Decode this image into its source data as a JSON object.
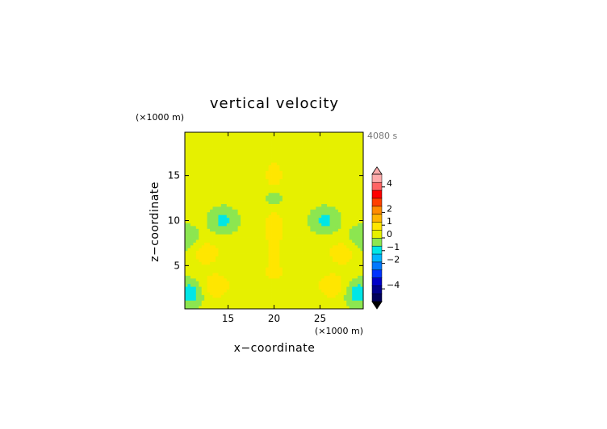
{
  "chart_data": {
    "type": "heatmap",
    "title": "vertical velocity",
    "xlabel": "x−coordinate",
    "ylabel": "z−coordinate",
    "x_unit": "(×1000 m)",
    "y_unit": "(×1000 m)",
    "time_label": "4080 s",
    "xlim": [
      10.3,
      29.7
    ],
    "ylim": [
      0.2,
      19.8
    ],
    "x_ticks": [
      15,
      20,
      25
    ],
    "x_tick_labels": [
      "15",
      "20",
      "25"
    ],
    "y_ticks": [
      5,
      10,
      15
    ],
    "y_tick_labels": [
      "5",
      "10",
      "15"
    ],
    "colorbar": {
      "tick_values": [
        4,
        2,
        1,
        0,
        -1,
        -2,
        -4
      ],
      "tick_labels": [
        "4",
        "2",
        "1",
        "0",
        "−1",
        "−2",
        "−4"
      ],
      "range": [
        -5,
        5
      ],
      "extend": "both",
      "colors": [
        "#00005a",
        "#00008c",
        "#0000c8",
        "#0032ff",
        "#0078ff",
        "#00b4ff",
        "#00e6e6",
        "#8ce650",
        "#e6f000",
        "#ffe600",
        "#ffb400",
        "#ff8c00",
        "#ff4000",
        "#ff0000",
        "#ff6464",
        "#ffaaaa"
      ]
    },
    "field": {
      "background_value": 0.25,
      "features": [
        {
          "x": 20.0,
          "z": 9.5,
          "value": 1.05
        },
        {
          "x": 20.0,
          "z": 15.0,
          "value": 1.0
        },
        {
          "x": 20.0,
          "z": 12.3,
          "value": -0.7
        },
        {
          "x": 13.4,
          "z": 2.6,
          "value": 1.05
        },
        {
          "x": 26.6,
          "z": 2.6,
          "value": 1.05
        },
        {
          "x": 12.5,
          "z": 6.5,
          "value": 1.0
        },
        {
          "x": 27.5,
          "z": 6.5,
          "value": 1.0
        },
        {
          "x": 10.9,
          "z": 2.0,
          "value": -1.1
        },
        {
          "x": 29.1,
          "z": 2.0,
          "value": -1.1
        },
        {
          "x": 14.5,
          "z": 10.0,
          "value": -0.8
        },
        {
          "x": 25.5,
          "z": 10.0,
          "value": -0.8
        },
        {
          "x": 10.5,
          "z": 8.0,
          "value": -0.6
        },
        {
          "x": 29.5,
          "z": 8.0,
          "value": -0.6
        }
      ]
    }
  }
}
